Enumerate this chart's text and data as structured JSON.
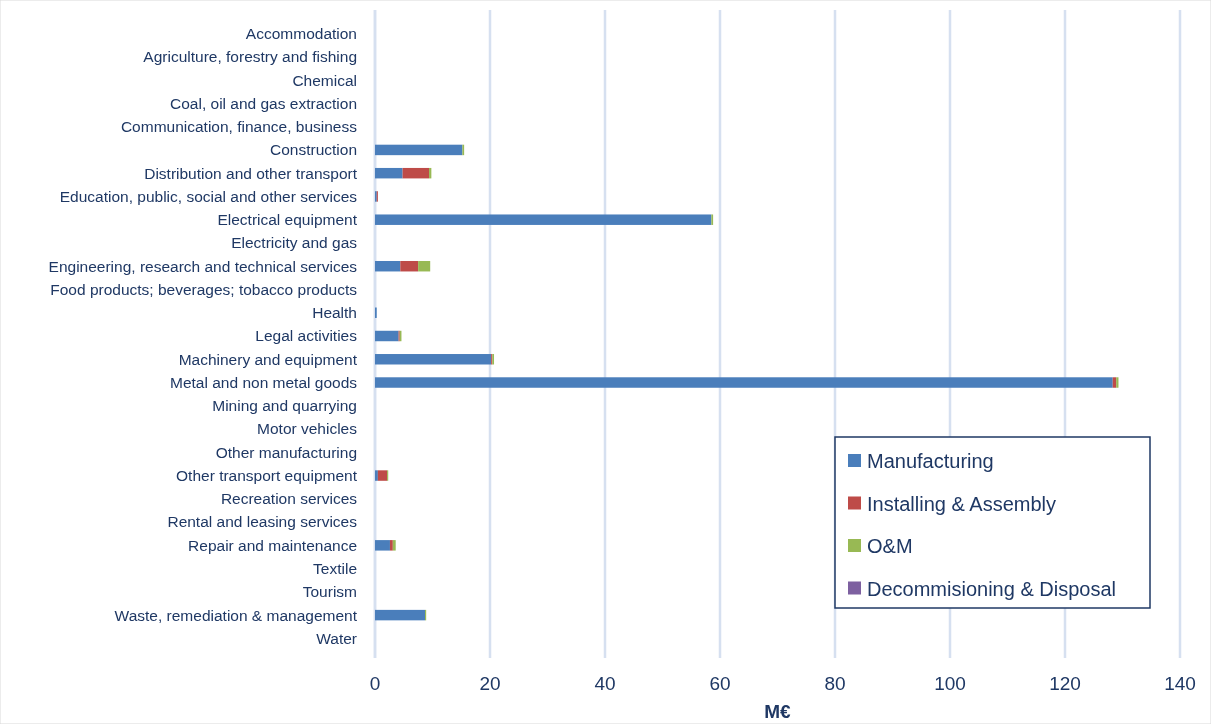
{
  "chart_data": {
    "type": "bar",
    "orientation": "horizontal",
    "stacked": true,
    "xlabel": "M€",
    "categories": [
      "Accommodation",
      "Agriculture, forestry and fishing",
      "Chemical",
      "Coal, oil and gas extraction",
      "Communication, finance, business",
      "Construction",
      "Distribution and other transport",
      "Education, public, social and other services",
      "Electrical equipment",
      "Electricity and gas",
      "Engineering, research and technical services",
      "Food products; beverages; tobacco products",
      "Health",
      "Legal activities",
      "Machinery and equipment",
      "Metal and non metal goods",
      "Mining and quarrying",
      "Motor vehicles",
      "Other manufacturing",
      "Other transport equipment",
      "Recreation services",
      "Rental and leasing services",
      "Repair and maintenance",
      "Textile",
      "Tourism",
      "Waste, remediation & management",
      "Water"
    ],
    "series": [
      {
        "name": "Manufacturing",
        "color": "#4a7ebb",
        "values": [
          0,
          0,
          0,
          0,
          0,
          15.2,
          4.8,
          0.3,
          58.5,
          0,
          4.4,
          0,
          0.3,
          4.1,
          20.2,
          128.3,
          0,
          0,
          0,
          0.5,
          0,
          0,
          2.6,
          0,
          0,
          8.7,
          0
        ]
      },
      {
        "name": "Installing & Assembly",
        "color": "#be4b48",
        "values": [
          0,
          0,
          0,
          0,
          0,
          0,
          4.6,
          0.2,
          0,
          0,
          3.1,
          0,
          0,
          0.2,
          0.2,
          0.6,
          0,
          0,
          0,
          1.6,
          0,
          0,
          0.5,
          0,
          0,
          0,
          0
        ]
      },
      {
        "name": "O&M",
        "color": "#98b954",
        "values": [
          0,
          0,
          0,
          0,
          0,
          0.3,
          0.4,
          null,
          0.3,
          0,
          2.1,
          0,
          null,
          0.3,
          0.3,
          0.4,
          0,
          0,
          0,
          0.2,
          0,
          0,
          0.5,
          0,
          0,
          0.2,
          0
        ]
      },
      {
        "name": "Decommisioning & Disposal",
        "color": "#7d60a0",
        "values": [
          0,
          0,
          0,
          0,
          0,
          0,
          0,
          0,
          0,
          0,
          0,
          0,
          0,
          0,
          0,
          0,
          0,
          0,
          0,
          0,
          0,
          0,
          0,
          0,
          0,
          0,
          0
        ]
      }
    ],
    "xlim": [
      0,
      140
    ],
    "xticks": [
      0,
      20,
      40,
      60,
      80,
      100,
      120,
      140
    ],
    "grid": "x",
    "legend": "bottom right"
  }
}
